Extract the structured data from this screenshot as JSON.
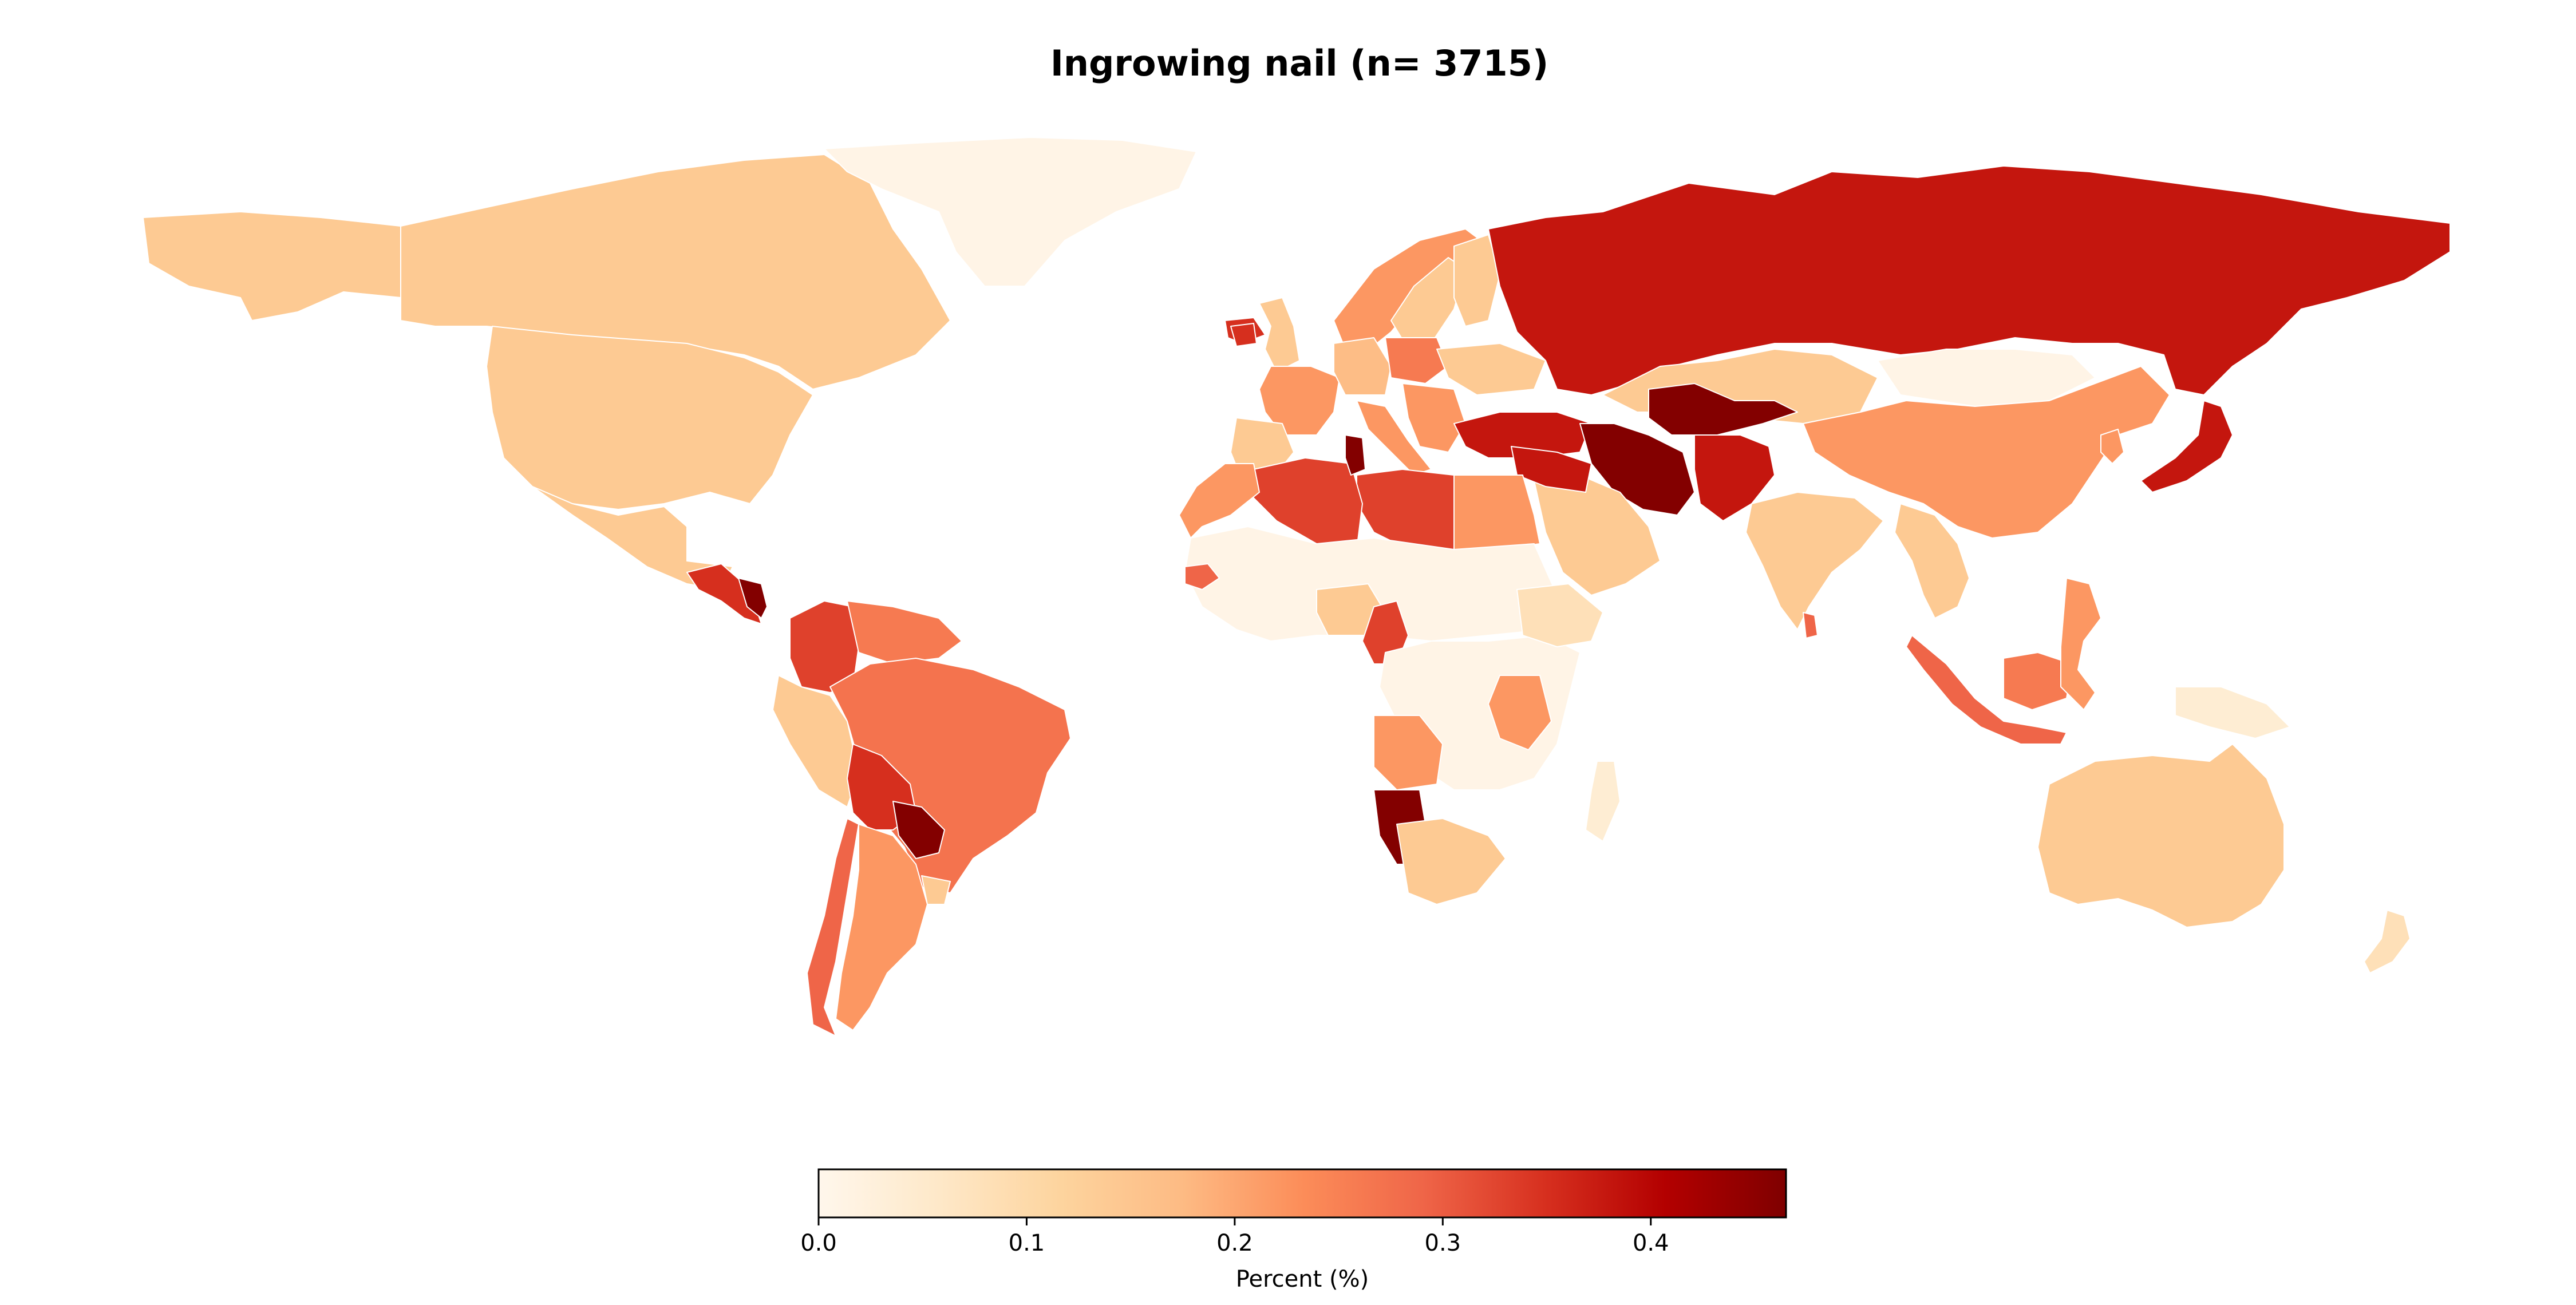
{
  "title": "Ingrowing nail (n= 3715)",
  "colorbar": {
    "label": "Percent (%)",
    "ticks": [
      {
        "value": 0.0,
        "label": "0.0"
      },
      {
        "value": 0.1,
        "label": "0.1"
      },
      {
        "value": 0.2,
        "label": "0.2"
      },
      {
        "value": 0.3,
        "label": "0.3"
      },
      {
        "value": 0.4,
        "label": "0.4"
      }
    ],
    "min": 0.0,
    "max": 0.465,
    "colormap": "OrRd",
    "stops": [
      "#fff7ec",
      "#fee8c8",
      "#fdd49e",
      "#fdbb84",
      "#fc8d59",
      "#ef6548",
      "#d7301f",
      "#b30000",
      "#7f0000"
    ]
  },
  "regions": [
    {
      "name": "Alaska (USA)",
      "value": 0.14
    },
    {
      "name": "Canada",
      "value": 0.14
    },
    {
      "name": "United States",
      "value": 0.14
    },
    {
      "name": "Greenland",
      "value": 0.01
    },
    {
      "name": "Mexico",
      "value": 0.14
    },
    {
      "name": "Central America",
      "value": 0.35
    },
    {
      "name": "Nicaragua",
      "value": 0.46
    },
    {
      "name": "Colombia",
      "value": 0.33
    },
    {
      "name": "Venezuela",
      "value": 0.26
    },
    {
      "name": "Peru",
      "value": 0.14
    },
    {
      "name": "Brazil",
      "value": 0.27
    },
    {
      "name": "Bolivia",
      "value": 0.35
    },
    {
      "name": "Paraguay",
      "value": 0.46
    },
    {
      "name": "Chile",
      "value": 0.29
    },
    {
      "name": "Argentina",
      "value": 0.22
    },
    {
      "name": "Uruguay",
      "value": 0.14
    },
    {
      "name": "Iceland",
      "value": 0.35
    },
    {
      "name": "Norway",
      "value": 0.22
    },
    {
      "name": "Sweden",
      "value": 0.14
    },
    {
      "name": "Finland",
      "value": 0.14
    },
    {
      "name": "United Kingdom",
      "value": 0.14
    },
    {
      "name": "Ireland",
      "value": 0.35
    },
    {
      "name": "France",
      "value": 0.22
    },
    {
      "name": "Spain",
      "value": 0.14
    },
    {
      "name": "Germany",
      "value": 0.17
    },
    {
      "name": "Poland",
      "value": 0.26
    },
    {
      "name": "Italy",
      "value": 0.22
    },
    {
      "name": "Balkans",
      "value": 0.22
    },
    {
      "name": "Ukraine",
      "value": 0.14
    },
    {
      "name": "Russia",
      "value": 0.38
    },
    {
      "name": "Kazakhstan",
      "value": 0.14
    },
    {
      "name": "Mongolia",
      "value": 0.01
    },
    {
      "name": "China",
      "value": 0.22
    },
    {
      "name": "Japan",
      "value": 0.38
    },
    {
      "name": "Korea",
      "value": 0.22
    },
    {
      "name": "Turkey",
      "value": 0.38
    },
    {
      "name": "Iran",
      "value": 0.46
    },
    {
      "name": "Turkmenistan/Uzbekistan",
      "value": 0.46
    },
    {
      "name": "Afghanistan/Pakistan",
      "value": 0.38
    },
    {
      "name": "Saudi Arabia",
      "value": 0.14
    },
    {
      "name": "Iraq/Syria",
      "value": 0.38
    },
    {
      "name": "Egypt",
      "value": 0.22
    },
    {
      "name": "Libya",
      "value": 0.33
    },
    {
      "name": "Algeria",
      "value": 0.33
    },
    {
      "name": "Tunisia",
      "value": 0.46
    },
    {
      "name": "Morocco",
      "value": 0.22
    },
    {
      "name": "India",
      "value": 0.14
    },
    {
      "name": "Sri Lanka",
      "value": 0.29
    },
    {
      "name": "Southeast Asia",
      "value": 0.14
    },
    {
      "name": "Sumatra/Java",
      "value": 0.29
    },
    {
      "name": "Borneo",
      "value": 0.26
    },
    {
      "name": "Sulawesi/Philippines",
      "value": 0.22
    },
    {
      "name": "New Guinea",
      "value": 0.04
    },
    {
      "name": "Australia",
      "value": 0.14
    },
    {
      "name": "New Zealand",
      "value": 0.08
    },
    {
      "name": "West Africa",
      "value": 0.01
    },
    {
      "name": "Senegal",
      "value": 0.29
    },
    {
      "name": "Nigeria",
      "value": 0.14
    },
    {
      "name": "Cameroon",
      "value": 0.33
    },
    {
      "name": "Central Africa",
      "value": 0.01
    },
    {
      "name": "Ethiopia",
      "value": 0.08
    },
    {
      "name": "Tanzania",
      "value": 0.22
    },
    {
      "name": "Angola",
      "value": 0.22
    },
    {
      "name": "Namibia",
      "value": 0.46
    },
    {
      "name": "South Africa",
      "value": 0.14
    },
    {
      "name": "Madagascar",
      "value": 0.04
    }
  ]
}
